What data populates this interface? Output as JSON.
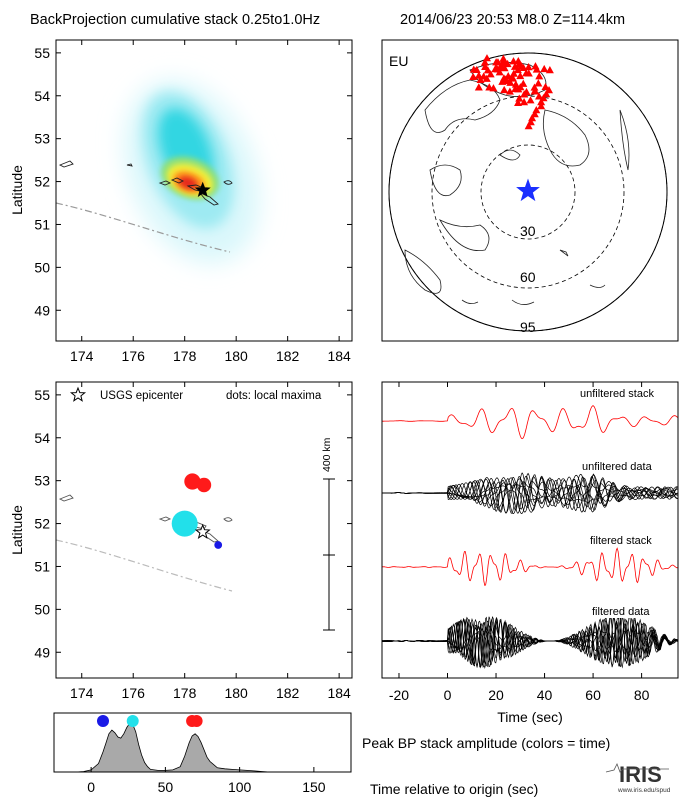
{
  "header": {
    "title_left": "BackProjection cumulative stack 0.25to1.0Hz",
    "title_right": "2014/06/23 20:53   M8.0   Z=114.4km"
  },
  "colors": {
    "epicenter_star": "#000000",
    "global_star": "#1a2fff",
    "stations": "#ff0000",
    "red": "#ff1a1a",
    "cyan": "#22e0ea",
    "blue": "#1a1ae6",
    "trace_red": "#ff0000",
    "trace_black": "#000000",
    "hist_fill": "#a9a9a9",
    "trench": "#9a9a9a"
  },
  "map_cumulative": {
    "ylabel": "Latitude",
    "xticks": [
      "174",
      "176",
      "178",
      "180",
      "182",
      "184"
    ],
    "yticks": [
      "55",
      "54",
      "53",
      "52",
      "51",
      "50",
      "49"
    ],
    "epicenter": {
      "lon": 178.7,
      "lat": 51.8
    }
  },
  "global_map": {
    "region": "EU",
    "ring_labels": [
      "30",
      "60",
      "95"
    ]
  },
  "map_maxima": {
    "ylabel": "Latitude",
    "xticks": [
      "174",
      "176",
      "178",
      "180",
      "182",
      "184"
    ],
    "yticks": [
      "55",
      "54",
      "53",
      "52",
      "51",
      "50",
      "49"
    ],
    "legend_star": "USGS epicenter",
    "legend_dots": "dots: local maxima",
    "scale_label": "400 km"
  },
  "traces": {
    "labels": [
      "unfiltered stack",
      "unfiltered data",
      "filtered stack",
      "filtered data"
    ],
    "xticks": [
      "-20",
      "0",
      "20",
      "40",
      "60",
      "80"
    ],
    "xlabel": "Time (sec)"
  },
  "histogram": {
    "xticks": [
      "0",
      "50",
      "100",
      "150"
    ],
    "xlabel": "Time relative to origin (sec)",
    "side_label": "Peak BP stack amplitude (colors = time)"
  },
  "logo": {
    "text": "IRIS",
    "url": "www.iris.edu/spud"
  },
  "chart_data": [
    {
      "type": "heatmap",
      "title": "BackProjection cumulative stack 0.25to1.0Hz",
      "ylabel": "Latitude",
      "xlim": [
        173,
        184.5
      ],
      "ylim": [
        48.4,
        55.3
      ],
      "xticks": [
        174,
        176,
        178,
        180,
        182,
        184
      ],
      "yticks": [
        49,
        50,
        51,
        52,
        53,
        54,
        55
      ],
      "peak": {
        "lon": 178.1,
        "lat": 52.0
      },
      "epicenter": {
        "lon": 178.7,
        "lat": 51.8
      }
    },
    {
      "type": "scatter",
      "title": "dots: local maxima",
      "ylabel": "Latitude",
      "xlim": [
        173,
        184.5
      ],
      "ylim": [
        48.4,
        55.3
      ],
      "points": [
        {
          "lon": 178.0,
          "lat": 52.0,
          "time": 28,
          "color": "cyan",
          "size": 1.0
        },
        {
          "lon": 178.75,
          "lat": 52.9,
          "time": 70,
          "color": "red",
          "size": 0.55
        },
        {
          "lon": 178.3,
          "lat": 52.98,
          "time": 68,
          "color": "red",
          "size": 0.62
        },
        {
          "lon": 179.3,
          "lat": 51.5,
          "time": 8,
          "color": "blue",
          "size": 0.3
        }
      ],
      "epicenter": {
        "lon": 178.7,
        "lat": 51.8
      }
    },
    {
      "type": "line",
      "xlabel": "Time (sec)",
      "xlim": [
        -27,
        95
      ],
      "series": [
        {
          "name": "unfiltered stack"
        },
        {
          "name": "unfiltered data"
        },
        {
          "name": "filtered stack"
        },
        {
          "name": "filtered data"
        }
      ]
    },
    {
      "type": "area",
      "xlabel": "Time relative to origin (sec)",
      "xlim": [
        -25,
        175
      ],
      "ylim": [
        0,
        1
      ],
      "x": [
        -25,
        -15,
        -10,
        -5,
        0,
        5,
        8,
        10,
        12,
        14,
        16,
        18,
        20,
        22,
        24,
        26,
        28,
        30,
        32,
        34,
        36,
        38,
        40,
        45,
        50,
        55,
        60,
        63,
        66,
        68,
        70,
        72,
        74,
        76,
        78,
        80,
        85,
        90,
        95,
        100,
        105,
        110,
        115,
        120,
        175
      ],
      "values": [
        0,
        0,
        0,
        0.01,
        0.04,
        0.16,
        0.38,
        0.55,
        0.72,
        0.79,
        0.74,
        0.66,
        0.64,
        0.72,
        0.84,
        0.92,
        0.9,
        0.76,
        0.52,
        0.32,
        0.18,
        0.1,
        0.05,
        0.03,
        0.03,
        0.04,
        0.1,
        0.3,
        0.55,
        0.68,
        0.72,
        0.67,
        0.56,
        0.42,
        0.28,
        0.2,
        0.08,
        0.06,
        0.05,
        0.04,
        0.03,
        0.02,
        0.01,
        0,
        0
      ],
      "markers": [
        {
          "time": 8,
          "color": "blue"
        },
        {
          "time": 28,
          "color": "cyan"
        },
        {
          "time": 68,
          "color": "red"
        },
        {
          "time": 71,
          "color": "red"
        }
      ]
    }
  ]
}
